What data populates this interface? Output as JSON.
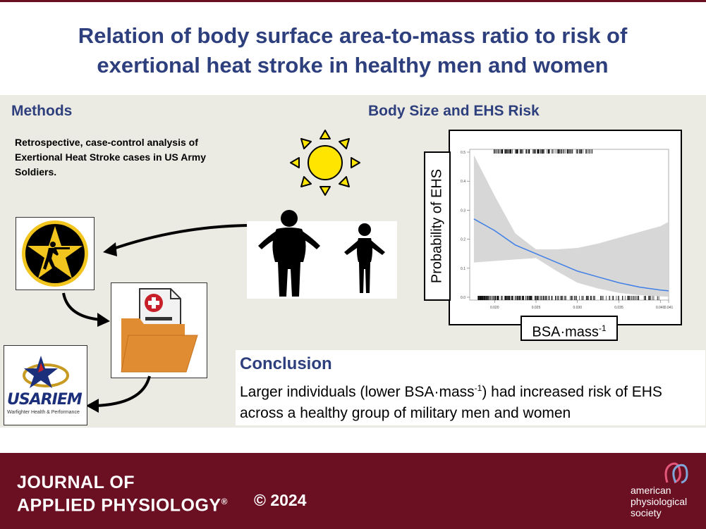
{
  "title": {
    "line1": "Relation of body surface area-to-mass ratio to risk of",
    "line2": "exertional heat stroke in healthy men and women"
  },
  "methods": {
    "heading": "Methods",
    "text": "Retrospective, case-control analysis of Exertional Heat Stroke cases in US Army Soldiers."
  },
  "body_size": {
    "heading": "Body Size and EHS Risk"
  },
  "usariem": {
    "name": "USARIEM",
    "tagline": "Warfighter Health & Performance"
  },
  "chart_data": {
    "type": "line",
    "title": "",
    "xlabel_base": "BSA·mass",
    "xlabel_sup": "-1",
    "ylabel": "Probability of EHS",
    "xlim": [
      0.017,
      0.041
    ],
    "ylim": [
      0.0,
      0.5
    ],
    "x_ticks": [
      "0.020",
      "0.025",
      "0.030",
      "0.035",
      "0.040",
      "0.041"
    ],
    "y_ticks": [
      "0.0",
      "0.1",
      "0.2",
      "0.3",
      "0.4",
      "0.5"
    ],
    "series": [
      {
        "x": [
          0.0175,
          0.02,
          0.0225,
          0.025,
          0.0275,
          0.03,
          0.0325,
          0.035,
          0.0375,
          0.04,
          0.041
        ],
        "y": [
          0.27,
          0.23,
          0.18,
          0.15,
          0.12,
          0.09,
          0.07,
          0.05,
          0.035,
          0.025,
          0.022
        ],
        "lower": [
          0.12,
          0.125,
          0.13,
          0.135,
          0.09,
          0.05,
          0.03,
          0.015,
          0.007,
          0.003,
          0.002
        ],
        "upper": [
          0.49,
          0.35,
          0.22,
          0.165,
          0.165,
          0.17,
          0.185,
          0.205,
          0.225,
          0.245,
          0.26
        ]
      }
    ],
    "line_color": "#3f7fe6",
    "band_color": "#d3d3d3"
  },
  "conclusion": {
    "heading": "Conclusion",
    "text_part1": "Larger individuals (lower BSA·mass",
    "text_sup": "-1",
    "text_part2": ") had increased risk of EHS across a healthy group of military men and women"
  },
  "footer": {
    "journal_line1": "JOURNAL OF",
    "journal_line2": "APPLIED PHYSIOLOGY",
    "registered_mark": "®",
    "copyright": "© 2024",
    "society_line1": "american",
    "society_line2": "physiological",
    "society_line3": "society"
  },
  "colors": {
    "title_blue": "#2e3f7d",
    "maroon": "#6b0f22",
    "panel_bg": "#ecebe3",
    "folder_orange": "#e08c33",
    "sun_yellow": "#ffe500"
  }
}
